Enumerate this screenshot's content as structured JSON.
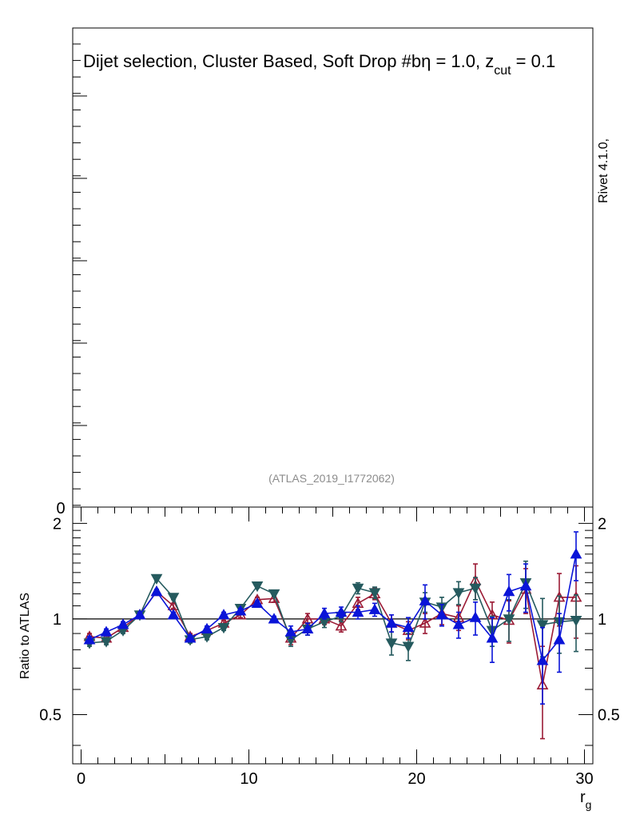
{
  "title_main": "Dijet selection, Cluster Based, Soft Drop #b",
  "title_eta": "η = 1.0, z",
  "title_cut": "cut",
  "title_eq": " = 0.1",
  "rivet_label": "Rivet 4.1.0,",
  "analysis_id": "(ATLAS_2019_I1772062)",
  "upper_zero_label": "0",
  "chart_data": [
    {
      "type": "line",
      "panel": "main",
      "title": "Dijet selection, Cluster Based, Soft Drop #bη = 1.0, z_cut = 0.1",
      "ylabel": "",
      "xlim": [
        -0.5,
        30.5
      ],
      "ylim": [
        0,
        6
      ],
      "series": []
    },
    {
      "type": "line",
      "panel": "ratio",
      "xlabel": "r",
      "xlabel_sub": "g",
      "ylabel": "Ratio to ATLAS",
      "xlim": [
        -0.5,
        30.5
      ],
      "ylim": [
        0.35,
        2.25
      ],
      "yscale": "log",
      "x_ticks": [
        0,
        10,
        20,
        30
      ],
      "y_ticks": [
        0.5,
        1,
        2
      ],
      "x_tick_labels": [
        "0",
        "10",
        "20",
        "30"
      ],
      "y_tick_labels": [
        "0.5",
        "1",
        "2"
      ],
      "reference_line": 1.0,
      "x": [
        0.5,
        1.5,
        2.5,
        3.5,
        4.5,
        5.5,
        6.5,
        7.5,
        8.5,
        9.5,
        10.5,
        11.5,
        12.5,
        13.5,
        14.5,
        15.5,
        16.5,
        17.5,
        18.5,
        19.5,
        20.5,
        21.5,
        22.5,
        23.5,
        24.5,
        25.5,
        26.5,
        27.5,
        28.5,
        29.5
      ],
      "series": [
        {
          "name": "MC (red, open triangle up)",
          "color": "#9b1b35",
          "marker": "triangle-up-open",
          "values": [
            0.88,
            0.87,
            0.94,
            1.03,
            1.22,
            1.1,
            0.88,
            0.92,
            0.97,
            1.03,
            1.15,
            1.16,
            0.87,
            1.0,
            1.0,
            0.95,
            1.12,
            1.2,
            0.97,
            0.92,
            0.97,
            1.04,
            1.01,
            1.32,
            1.03,
            0.99,
            1.24,
            0.62,
            1.17,
            1.17
          ],
          "err": [
            0.02,
            0.02,
            0.02,
            0.02,
            0.02,
            0.02,
            0.02,
            0.02,
            0.02,
            0.02,
            0.02,
            0.03,
            0.04,
            0.04,
            0.04,
            0.04,
            0.05,
            0.05,
            0.06,
            0.06,
            0.07,
            0.08,
            0.09,
            0.17,
            0.1,
            0.15,
            0.2,
            0.2,
            0.22,
            0.3
          ]
        },
        {
          "name": "MC (teal, filled triangle down)",
          "color": "#255a5e",
          "marker": "triangle-down-filled",
          "values": [
            0.84,
            0.85,
            0.92,
            1.03,
            1.34,
            1.17,
            0.86,
            0.88,
            0.94,
            1.08,
            1.27,
            1.2,
            0.86,
            0.93,
            0.98,
            1.02,
            1.25,
            1.21,
            0.84,
            0.82,
            1.13,
            1.09,
            1.21,
            1.25,
            0.92,
            1.0,
            1.3,
            0.96,
            0.98,
            0.99
          ],
          "err": [
            0.02,
            0.02,
            0.02,
            0.02,
            0.02,
            0.02,
            0.02,
            0.02,
            0.02,
            0.02,
            0.02,
            0.02,
            0.04,
            0.04,
            0.04,
            0.04,
            0.05,
            0.05,
            0.07,
            0.08,
            0.08,
            0.08,
            0.1,
            0.1,
            0.1,
            0.15,
            0.22,
            0.2,
            0.2,
            0.2
          ]
        },
        {
          "name": "MC (blue, filled triangle up)",
          "color": "#0a14d8",
          "marker": "triangle-up-filled",
          "values": [
            0.86,
            0.91,
            0.96,
            1.03,
            1.22,
            1.03,
            0.87,
            0.93,
            1.03,
            1.06,
            1.12,
            1.0,
            0.91,
            0.93,
            1.04,
            1.05,
            1.05,
            1.07,
            0.97,
            0.94,
            1.14,
            1.03,
            0.96,
            1.01,
            0.87,
            1.22,
            1.27,
            0.74,
            0.86,
            1.6
          ],
          "err": [
            0.02,
            0.02,
            0.02,
            0.02,
            0.02,
            0.02,
            0.02,
            0.02,
            0.02,
            0.02,
            0.02,
            0.02,
            0.04,
            0.04,
            0.04,
            0.04,
            0.05,
            0.05,
            0.06,
            0.07,
            0.14,
            0.08,
            0.09,
            0.12,
            0.14,
            0.16,
            0.22,
            0.2,
            0.18,
            0.28
          ]
        }
      ]
    }
  ]
}
